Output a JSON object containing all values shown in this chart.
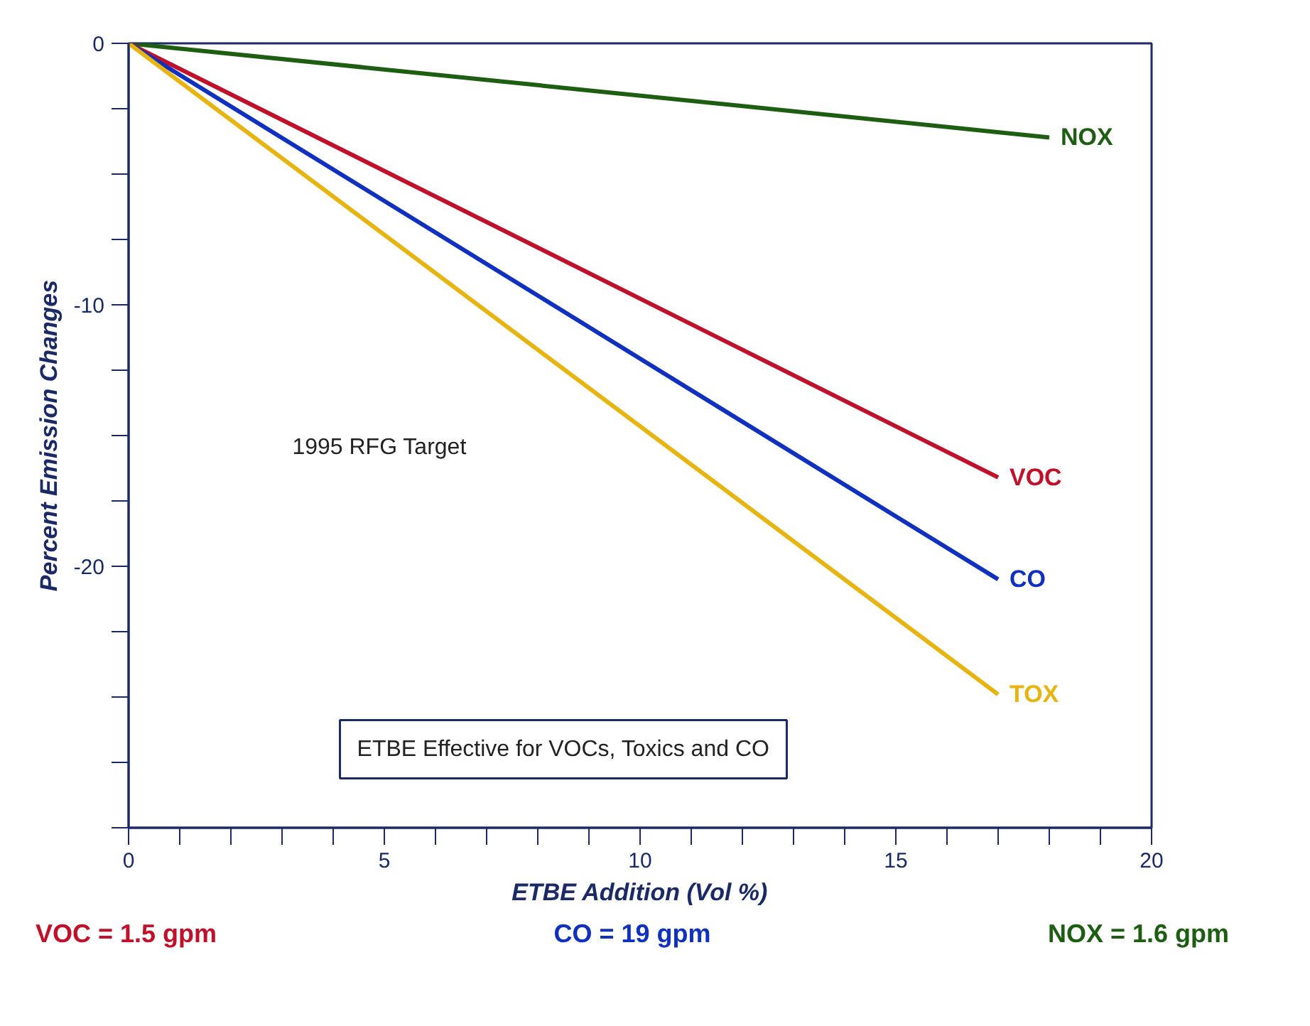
{
  "chart_data": {
    "type": "line",
    "xlabel": "ETBE Addition (Vol %)",
    "ylabel": "Percent Emission Changes",
    "xlim": [
      0,
      20
    ],
    "ylim": [
      -30,
      0
    ],
    "xticks": [
      0,
      {
        "value": 1,
        "label": null
      },
      {
        "value": 2,
        "label": null
      },
      {
        "value": 3,
        "label": null
      },
      {
        "value": 4,
        "label": null
      },
      5,
      {
        "value": 6,
        "label": null
      },
      {
        "value": 7,
        "label": null
      },
      {
        "value": 8,
        "label": null
      },
      {
        "value": 9,
        "label": null
      },
      10,
      {
        "value": 11,
        "label": null
      },
      {
        "value": 12,
        "label": null
      },
      {
        "value": 13,
        "label": null
      },
      {
        "value": 14,
        "label": null
      },
      15,
      {
        "value": 16,
        "label": null
      },
      {
        "value": 17,
        "label": null
      },
      {
        "value": 18,
        "label": null
      },
      {
        "value": 19,
        "label": null
      },
      20
    ],
    "yticks": [
      0,
      {
        "value": -2.5,
        "label": null
      },
      {
        "value": -5,
        "label": null
      },
      {
        "value": -7.5,
        "label": null
      },
      -10,
      {
        "value": -12.5,
        "label": null
      },
      {
        "value": -15,
        "label": null
      },
      {
        "value": -17.5,
        "label": null
      },
      -20,
      {
        "value": -22.5,
        "label": null
      },
      {
        "value": -25,
        "label": null
      },
      {
        "value": -27.5,
        "label": null
      },
      {
        "value": -30,
        "label": null
      }
    ],
    "grid": false,
    "marker": "none",
    "line_style": "solid",
    "series": [
      {
        "name": "NOX",
        "color": "#1e5e12",
        "x": [
          0,
          18
        ],
        "values": [
          0,
          -3.6
        ]
      },
      {
        "name": "VOC",
        "color": "#c0102a",
        "x": [
          0,
          17
        ],
        "values": [
          0,
          -16.6
        ]
      },
      {
        "name": "CO",
        "color": "#1030c0",
        "x": [
          0,
          17
        ],
        "values": [
          0,
          -20.5
        ]
      },
      {
        "name": "TOX",
        "color": "#e8b410",
        "x": [
          0,
          17
        ],
        "values": [
          0,
          -24.9
        ]
      }
    ],
    "annotations": [
      "1995 RFG Target",
      "ETBE Effective for VOCs, Toxics and CO",
      "VOC = 1.5 gpm",
      "CO = 19 gpm",
      "NOX = 1.6 gpm"
    ]
  }
}
